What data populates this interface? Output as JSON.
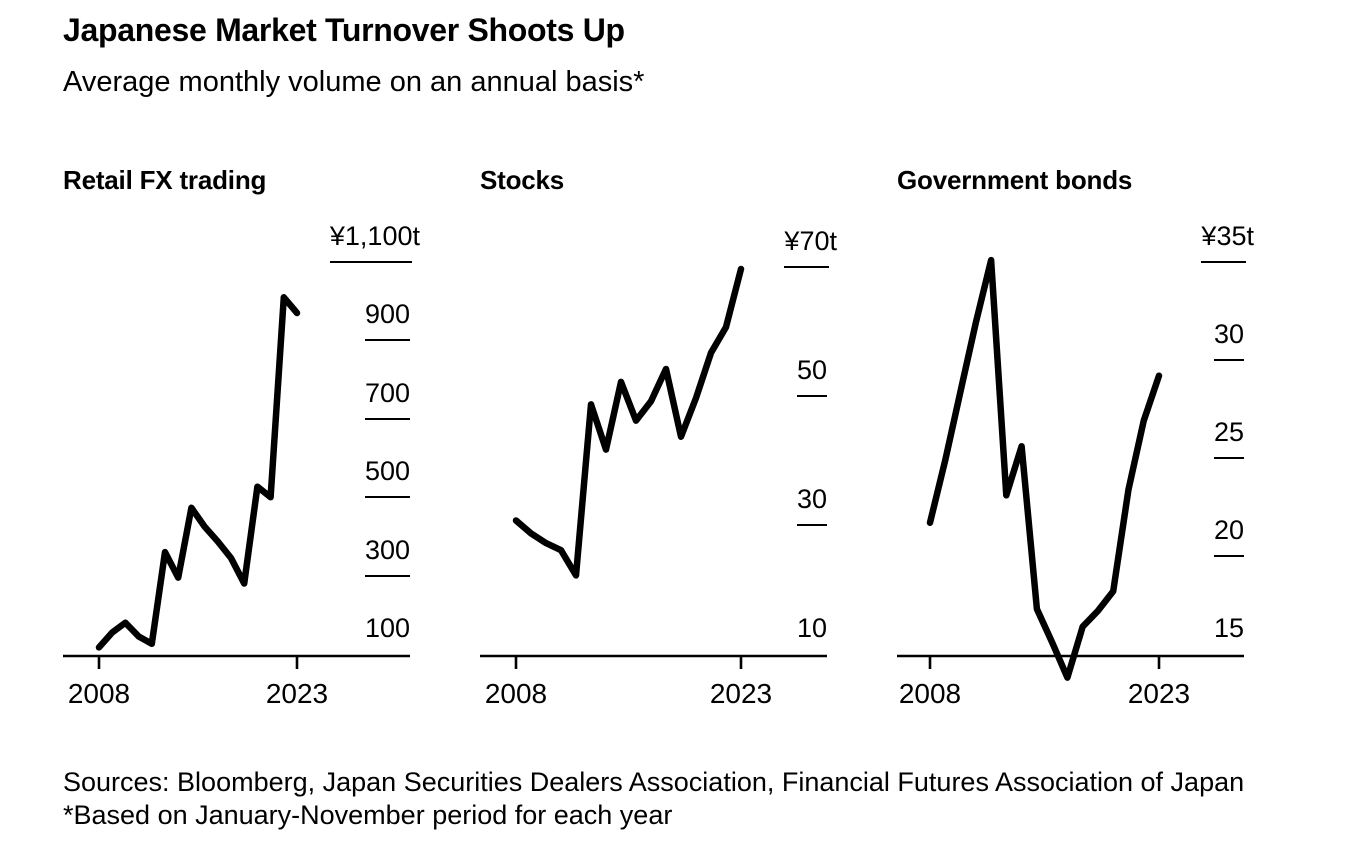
{
  "header": {
    "title": "Japanese Market Turnover Shoots Up",
    "subtitle": "Average monthly volume on an annual basis*"
  },
  "footer": {
    "sources": "Sources: Bloomberg, Japan Securities Dealers Association, Financial Futures Association of Japan",
    "note": "*Based on January-November period for each year"
  },
  "colors": {
    "background": "#ffffff",
    "text": "#000000",
    "line": "#000000",
    "axis": "#000000"
  },
  "chart_data": [
    {
      "type": "line",
      "title": "Retail FX trading",
      "x": [
        2008,
        2009,
        2010,
        2011,
        2012,
        2013,
        2014,
        2015,
        2016,
        2017,
        2018,
        2019,
        2020,
        2021,
        2022,
        2023
      ],
      "values": [
        122,
        160,
        185,
        150,
        131,
        365,
        300,
        478,
        430,
        392,
        350,
        285,
        532,
        505,
        1015,
        975
      ],
      "xlim": [
        2008,
        2023
      ],
      "ylim": [
        100,
        1100
      ],
      "grid": false,
      "legend": false,
      "y_ticks": [
        {
          "value": 1100,
          "label": "¥1,100",
          "unit": "t"
        },
        {
          "value": 900,
          "label": "900",
          "unit": ""
        },
        {
          "value": 700,
          "label": "700",
          "unit": ""
        },
        {
          "value": 500,
          "label": "500",
          "unit": ""
        },
        {
          "value": 300,
          "label": "300",
          "unit": ""
        },
        {
          "value": 100,
          "label": "100",
          "unit": ""
        }
      ],
      "x_ticks": [
        2008,
        2023
      ],
      "x_tick_labels": [
        "2008",
        "2023"
      ]
    },
    {
      "type": "line",
      "title": "Stocks",
      "x": [
        2008,
        2009,
        2010,
        2011,
        2012,
        2013,
        2014,
        2015,
        2016,
        2017,
        2018,
        2019,
        2020,
        2021,
        2022,
        2023
      ],
      "values": [
        31,
        29,
        27.5,
        26.4,
        22.5,
        49,
        42,
        52.5,
        46.5,
        49.5,
        54.5,
        44,
        50,
        57,
        61,
        70
      ],
      "xlim": [
        2008,
        2023
      ],
      "ylim": [
        10,
        70
      ],
      "grid": false,
      "legend": false,
      "y_ticks": [
        {
          "value": 70,
          "label": "¥70",
          "unit": "t"
        },
        {
          "value": 50,
          "label": "50",
          "unit": ""
        },
        {
          "value": 30,
          "label": "30",
          "unit": ""
        },
        {
          "value": 10,
          "label": "10",
          "unit": ""
        }
      ],
      "x_ticks": [
        2008,
        2023
      ],
      "x_tick_labels": [
        "2008",
        "2023"
      ]
    },
    {
      "type": "line",
      "title": "Government bonds",
      "x": [
        2008,
        2009,
        2010,
        2011,
        2012,
        2013,
        2014,
        2015,
        2016,
        2017,
        2018,
        2019,
        2020,
        2021,
        2022,
        2023
      ],
      "values": [
        21.8,
        25,
        28.5,
        32,
        35.2,
        23.2,
        25.7,
        17.4,
        15.7,
        13.9,
        16.5,
        17.3,
        18.3,
        23.5,
        27,
        29.3
      ],
      "xlim": [
        2008,
        2023
      ],
      "ylim": [
        15,
        35
      ],
      "grid": false,
      "legend": false,
      "y_ticks": [
        {
          "value": 35,
          "label": "¥35",
          "unit": "t"
        },
        {
          "value": 30,
          "label": "30",
          "unit": ""
        },
        {
          "value": 25,
          "label": "25",
          "unit": ""
        },
        {
          "value": 20,
          "label": "20",
          "unit": ""
        },
        {
          "value": 15,
          "label": "15",
          "unit": ""
        }
      ],
      "x_ticks": [
        2008,
        2023
      ],
      "x_tick_labels": [
        "2008",
        "2023"
      ]
    }
  ]
}
